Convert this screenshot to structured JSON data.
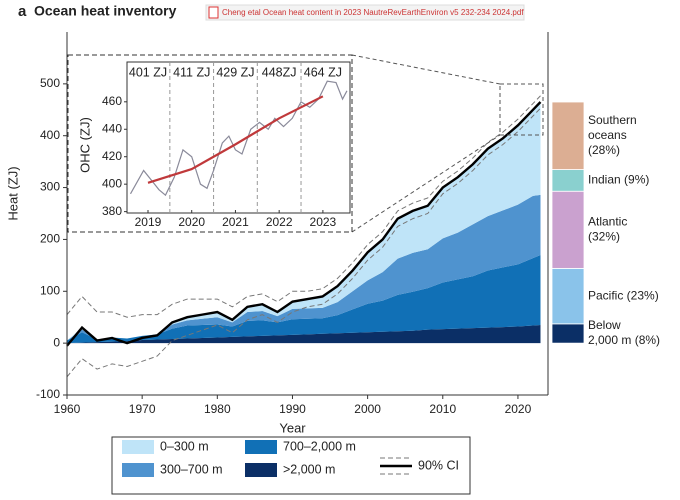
{
  "header": {
    "panel": "a",
    "title": "Ocean heat inventory",
    "file": "Cheng etal Ocean heat content in 2023 NautreRevEarthEnviron v5 232-234 2024.pdf"
  },
  "chart_data": [
    {
      "type": "area",
      "xlabel": "Year",
      "ylabel": "Heat (ZJ)",
      "xlim": [
        1960,
        2024
      ],
      "xticks": [
        1960,
        1970,
        1980,
        1990,
        2000,
        2010,
        2020
      ],
      "ylim": [
        -100,
        600
      ],
      "yticks": [
        -100,
        0,
        100,
        200,
        300,
        400,
        500
      ],
      "x": [
        1960,
        1962,
        1964,
        1966,
        1968,
        1970,
        1972,
        1974,
        1976,
        1978,
        1980,
        1982,
        1984,
        1986,
        1988,
        1990,
        1992,
        1994,
        1996,
        1998,
        2000,
        2002,
        2004,
        2006,
        2008,
        2010,
        2012,
        2014,
        2016,
        2018,
        2020,
        2022,
        2023
      ],
      "series": [
        {
          "name": ">2,000 m",
          "color": "#0b2f66",
          "values": [
            0,
            1,
            2,
            3,
            4,
            6,
            7,
            8,
            9,
            10,
            11,
            12,
            13,
            14,
            15,
            16,
            17,
            18,
            19,
            20,
            21,
            22,
            23,
            24,
            26,
            27,
            28,
            29,
            30,
            31,
            32,
            34,
            35
          ]
        },
        {
          "name": "700–2,000 m",
          "color": "#1170b6",
          "values": [
            5,
            20,
            5,
            8,
            5,
            8,
            10,
            20,
            25,
            25,
            25,
            20,
            30,
            30,
            25,
            30,
            30,
            30,
            35,
            45,
            55,
            60,
            70,
            75,
            80,
            90,
            95,
            100,
            110,
            115,
            120,
            130,
            135
          ]
        },
        {
          "name": "300–700 m",
          "color": "#4f93cf",
          "values": [
            0,
            5,
            0,
            0,
            0,
            0,
            0,
            8,
            10,
            12,
            14,
            8,
            17,
            18,
            12,
            20,
            20,
            20,
            25,
            35,
            45,
            55,
            70,
            75,
            75,
            85,
            90,
            100,
            105,
            110,
            115,
            120,
            116
          ]
        },
        {
          "name": "0–300 m",
          "color": "#bfe4f8",
          "values": [
            0,
            4,
            0,
            0,
            0,
            0,
            0,
            4,
            6,
            8,
            10,
            5,
            10,
            13,
            8,
            14,
            18,
            22,
            31,
            40,
            54,
            63,
            77,
            81,
            84,
            98,
            107,
            116,
            130,
            139,
            153,
            166,
            179
          ]
        }
      ],
      "line": {
        "color": "#000000",
        "values": [
          -5,
          30,
          5,
          10,
          0,
          10,
          15,
          40,
          50,
          55,
          60,
          45,
          70,
          75,
          60,
          80,
          85,
          90,
          110,
          140,
          175,
          200,
          240,
          255,
          265,
          300,
          320,
          345,
          375,
          395,
          420,
          450,
          465
        ]
      },
      "ci": {
        "name": "90% CI",
        "color": "#777777",
        "upper": [
          55,
          90,
          60,
          60,
          50,
          55,
          55,
          75,
          85,
          85,
          85,
          70,
          90,
          95,
          80,
          100,
          100,
          105,
          125,
          155,
          190,
          215,
          255,
          270,
          280,
          312,
          332,
          357,
          387,
          407,
          432,
          462,
          477
        ],
        "lower": [
          -65,
          -30,
          -50,
          -40,
          -45,
          -35,
          -25,
          5,
          15,
          25,
          35,
          20,
          45,
          55,
          40,
          60,
          70,
          75,
          95,
          125,
          160,
          185,
          225,
          240,
          250,
          288,
          308,
          333,
          363,
          383,
          408,
          438,
          453
        ]
      }
    },
    {
      "type": "line",
      "ylabel": "OHC (ZJ)",
      "xlim": [
        2018.52,
        2023.62
      ],
      "xticks": [
        2019,
        2020,
        2021,
        2022,
        2023
      ],
      "ylim": [
        379,
        489
      ],
      "yticks": [
        380,
        400,
        420,
        440,
        460
      ],
      "monthly": {
        "color": "#8a8a9a",
        "x": [
          2018.6,
          2018.9,
          2019.1,
          2019.25,
          2019.4,
          2019.6,
          2019.8,
          2020.0,
          2020.2,
          2020.35,
          2020.5,
          2020.7,
          2020.85,
          2021.0,
          2021.15,
          2021.35,
          2021.55,
          2021.75,
          2021.9,
          2022.1,
          2022.3,
          2022.5,
          2022.7,
          2022.9,
          2023.1,
          2023.3,
          2023.45,
          2023.55
        ],
        "values": [
          393,
          410,
          402,
          396,
          392,
          405,
          425,
          420,
          400,
          397,
          410,
          430,
          435,
          425,
          422,
          440,
          445,
          440,
          448,
          442,
          448,
          460,
          456,
          462,
          475,
          474,
          462,
          468
        ]
      },
      "annual": {
        "color": "#c0393b",
        "x": [
          2019,
          2020,
          2021,
          2022,
          2023
        ],
        "values": [
          401,
          411,
          429,
          448,
          464
        ],
        "value_labels": [
          "401 ZJ",
          "411 ZJ",
          "429 ZJ",
          "448ZJ",
          "464 ZJ"
        ]
      }
    },
    {
      "type": "stacked-bar",
      "segments": [
        {
          "label": [
            "Below",
            "2,000 m (8%)"
          ],
          "value": 8,
          "color": "#0b2f66"
        },
        {
          "label": [
            "Pacific (23%)"
          ],
          "value": 23,
          "color": "#8ac3ea"
        },
        {
          "label": [
            "Atlantic",
            "(32%)"
          ],
          "value": 32,
          "color": "#caa1cf"
        },
        {
          "label": [
            "Indian (9%)"
          ],
          "value": 9,
          "color": "#8ad0cf"
        },
        {
          "label": [
            "Southern",
            "oceans",
            "(28%)"
          ],
          "value": 28,
          "color": "#dcae93"
        }
      ]
    }
  ]
}
